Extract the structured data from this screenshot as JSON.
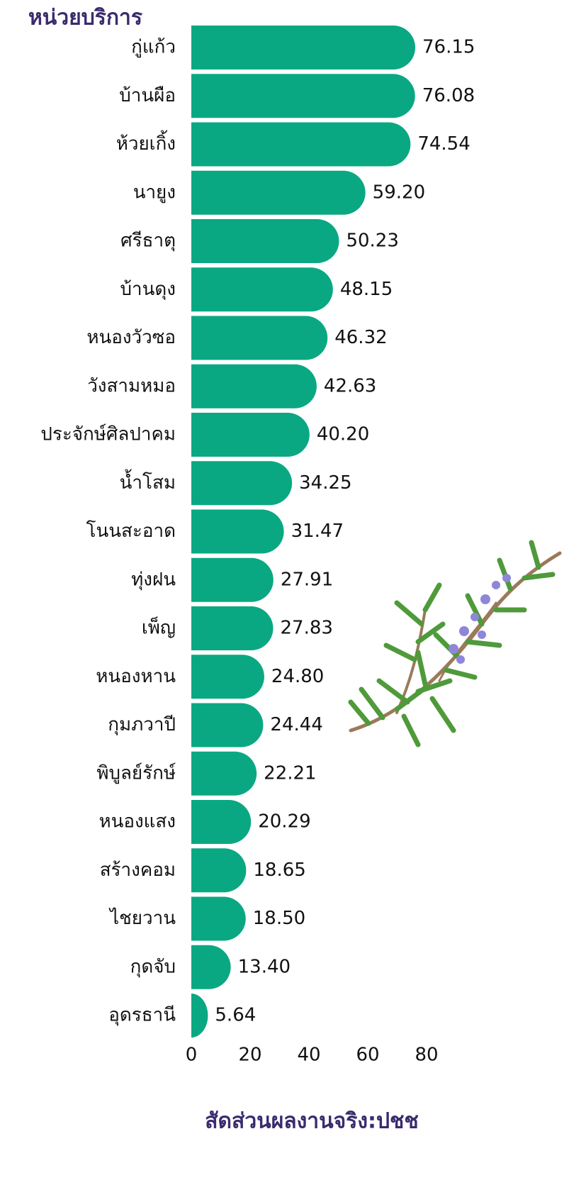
{
  "chart_data": {
    "type": "barh",
    "title": "หน่วยบริการ",
    "x_label": "สัดส่วนผลงานจริง:ปชช",
    "categories": [
      "กู่แก้ว",
      "บ้านผือ",
      "ห้วยเกิ้ง",
      "นายูง",
      "ศรีธาตุ",
      "บ้านดุง",
      "หนองวัวซอ",
      "วังสามหมอ",
      "ประจักษ์ศิลปาคม",
      "น้ำโสม",
      "โนนสะอาด",
      "ทุ่งฝน",
      "เพ็ญ",
      "หนองหาน",
      "กุมภวาปี",
      "พิบูลย์รักษ์",
      "หนองแสง",
      "สร้างคอม",
      "ไชยวาน",
      "กุดจับ",
      "อุดรธานี"
    ],
    "values": [
      76.15,
      76.08,
      74.54,
      59.2,
      50.23,
      48.15,
      46.32,
      42.63,
      40.2,
      34.25,
      31.47,
      27.91,
      27.83,
      24.8,
      24.44,
      22.21,
      20.29,
      18.65,
      18.5,
      13.4,
      5.64
    ],
    "value_labels": [
      "76.15",
      "76.08",
      "74.54",
      "59.20",
      "50.23",
      "48.15",
      "46.32",
      "42.63",
      "40.20",
      "34.25",
      "31.47",
      "27.91",
      "27.83",
      "24.80",
      "24.44",
      "22.21",
      "20.29",
      "18.65",
      "18.50",
      "13.40",
      "5.64"
    ],
    "color": "#0aa882",
    "xlim": [
      0,
      80
    ],
    "xticks": [
      0,
      20,
      40,
      60,
      80
    ]
  }
}
